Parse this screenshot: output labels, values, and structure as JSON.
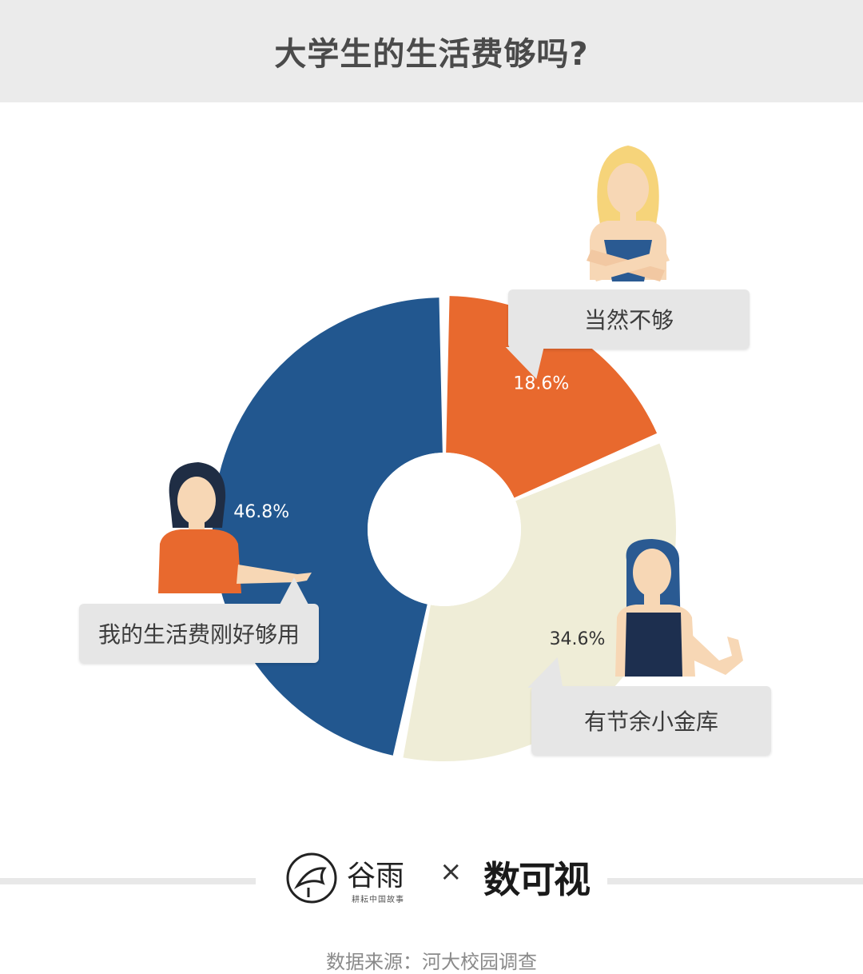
{
  "title": "大学生的生活费够吗?",
  "chart_data": {
    "type": "pie",
    "donut": true,
    "categories": [
      "当然不够",
      "有节余小金库",
      "我的生活费刚好够用"
    ],
    "values": [
      18.6,
      34.6,
      46.8
    ],
    "value_labels": [
      "18.6%",
      "34.6%",
      "46.8%"
    ],
    "colors": [
      "#e8692e",
      "#efedd7",
      "#22578f"
    ]
  },
  "callouts": {
    "not_enough": "当然不够",
    "has_savings": "有节余小金库",
    "just_enough": "我的生活费刚好够用"
  },
  "footer": {
    "logo_gu": "谷雨",
    "logo_gu_tagline": "耕耘中国故事",
    "cross": "×",
    "logo_shu": "数可视",
    "source": "数据来源：河大校园调查"
  }
}
